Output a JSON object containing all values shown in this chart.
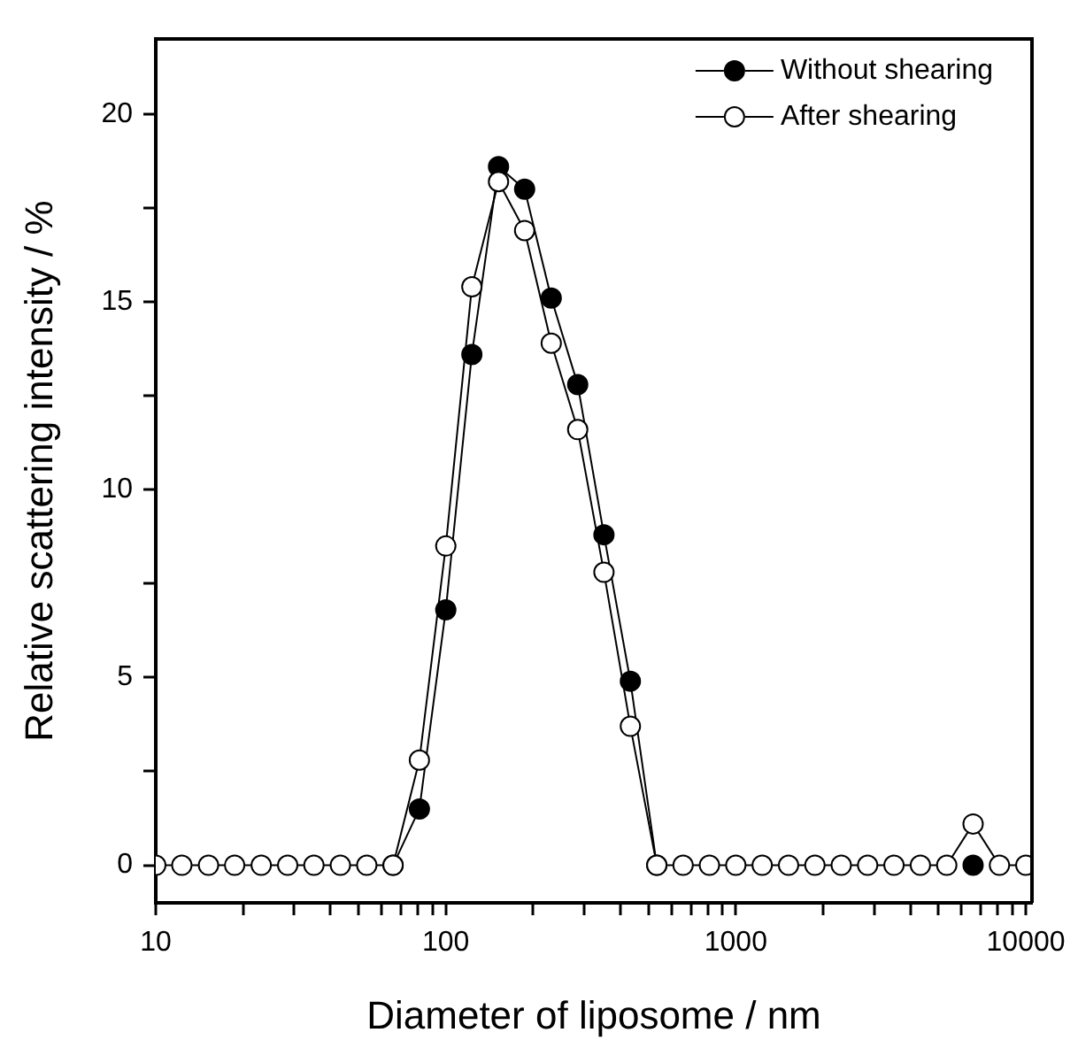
{
  "chart_data": {
    "type": "line",
    "xlabel": "Diameter of liposome / nm",
    "ylabel": "Relative scattering intensity / %",
    "log": "x",
    "marker": "circle",
    "legend": "top right",
    "grid": false,
    "x": [
      10,
      12.3,
      15.2,
      18.7,
      23.1,
      28.5,
      35.1,
      43.3,
      53.4,
      65.8,
      81.1,
      100,
      123,
      152,
      187,
      231,
      285,
      351,
      433,
      534,
      658,
      811,
      1000,
      1233,
      1520,
      1874,
      2310,
      2848,
      3511,
      4329,
      5337,
      6579,
      8111,
      10000
    ],
    "series": [
      {
        "name": "Without shearing",
        "color": "#000000",
        "values": [
          null,
          null,
          null,
          null,
          null,
          null,
          null,
          null,
          null,
          0,
          1.5,
          6.8,
          13.6,
          18.6,
          18.0,
          15.1,
          12.8,
          8.8,
          4.9,
          0,
          null,
          null,
          null,
          null,
          null,
          null,
          null,
          null,
          null,
          null,
          null,
          0,
          null,
          null
        ]
      },
      {
        "name": "After shearing",
        "color": "#ffffff",
        "values": [
          0,
          0,
          0,
          0,
          0,
          0,
          0,
          0,
          0,
          0,
          2.8,
          8.5,
          15.4,
          18.2,
          16.9,
          13.9,
          11.6,
          7.8,
          3.7,
          0,
          0,
          0,
          0,
          0,
          0,
          0,
          0,
          0,
          0,
          0,
          0,
          1.1,
          0,
          0
        ]
      }
    ],
    "xlim": [
      10,
      10500
    ],
    "xticks": [
      10,
      {
        "value": 20,
        "label": null
      },
      {
        "value": 30,
        "label": null
      },
      {
        "value": 40,
        "label": null
      },
      {
        "value": 50,
        "label": null
      },
      {
        "value": 60,
        "label": null
      },
      {
        "value": 70,
        "label": null
      },
      {
        "value": 80,
        "label": null
      },
      {
        "value": 90,
        "label": null
      },
      100,
      {
        "value": 200,
        "label": null
      },
      {
        "value": 300,
        "label": null
      },
      {
        "value": 400,
        "label": null
      },
      {
        "value": 500,
        "label": null
      },
      {
        "value": 600,
        "label": null
      },
      {
        "value": 700,
        "label": null
      },
      {
        "value": 800,
        "label": null
      },
      {
        "value": 900,
        "label": null
      },
      1000,
      {
        "value": 2000,
        "label": null
      },
      {
        "value": 3000,
        "label": null
      },
      {
        "value": 4000,
        "label": null
      },
      {
        "value": 5000,
        "label": null
      },
      {
        "value": 6000,
        "label": null
      },
      {
        "value": 7000,
        "label": null
      },
      {
        "value": 8000,
        "label": null
      },
      {
        "value": 9000,
        "label": null
      },
      10000
    ],
    "ylim": [
      -1,
      22
    ],
    "yticks": [
      0,
      {
        "value": 2.5,
        "label": null
      },
      5,
      {
        "value": 7.5,
        "label": null
      },
      10,
      {
        "value": 12.5,
        "label": null
      },
      15,
      {
        "value": 17.5,
        "label": null
      },
      20
    ]
  }
}
